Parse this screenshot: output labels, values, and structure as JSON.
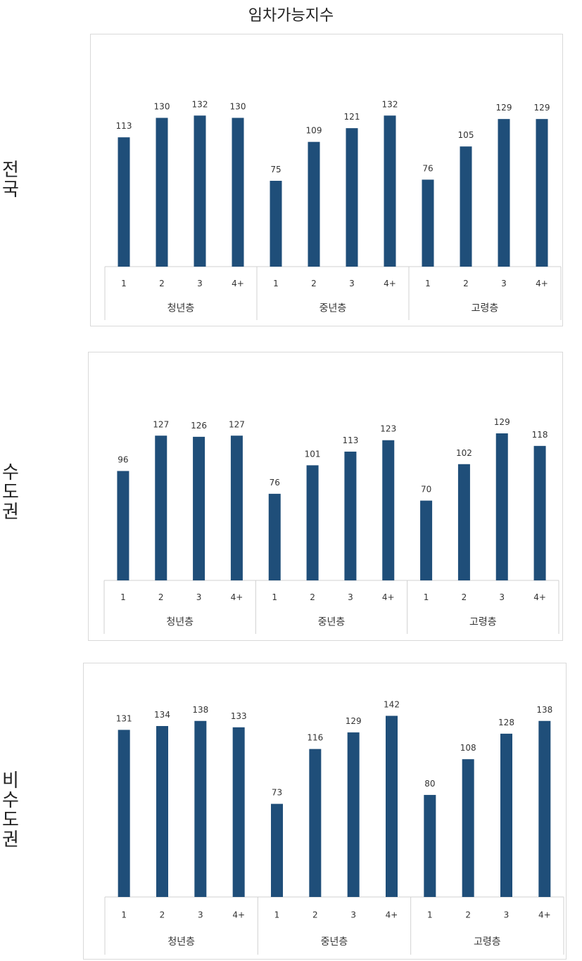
{
  "title": "임차가능지수",
  "chart_data": [
    {
      "type": "bar",
      "region": "전국",
      "groups": [
        "청년층",
        "중년층",
        "고령층"
      ],
      "categories": [
        "1",
        "2",
        "3",
        "4+"
      ],
      "values": [
        [
          113,
          130,
          132,
          130
        ],
        [
          75,
          109,
          121,
          132
        ],
        [
          76,
          105,
          129,
          129
        ]
      ],
      "ylim": [
        0,
        150
      ],
      "color": "#1f4e79"
    },
    {
      "type": "bar",
      "region": "수도권",
      "groups": [
        "청년층",
        "중년층",
        "고령층"
      ],
      "categories": [
        "1",
        "2",
        "3",
        "4+"
      ],
      "values": [
        [
          96,
          127,
          126,
          127
        ],
        [
          76,
          101,
          113,
          123
        ],
        [
          70,
          102,
          129,
          118
        ]
      ],
      "ylim": [
        0,
        150
      ],
      "color": "#1f4e79"
    },
    {
      "type": "bar",
      "region": "비수도권",
      "groups": [
        "청년층",
        "중년층",
        "고령층"
      ],
      "categories": [
        "1",
        "2",
        "3",
        "4+"
      ],
      "values": [
        [
          131,
          134,
          138,
          133
        ],
        [
          73,
          116,
          129,
          142
        ],
        [
          80,
          108,
          128,
          138
        ]
      ],
      "ylim": [
        0,
        150
      ],
      "color": "#1f4e79"
    }
  ]
}
